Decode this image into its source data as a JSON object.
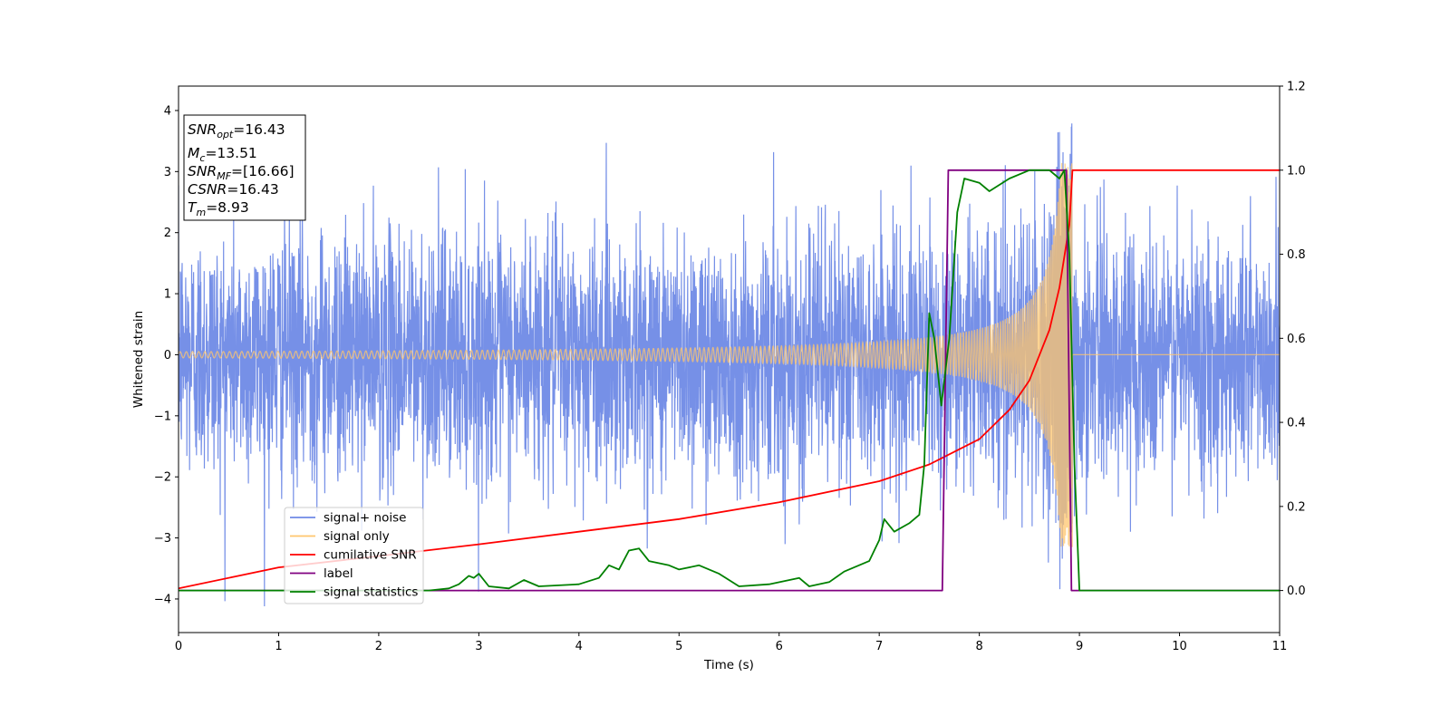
{
  "chart_data": {
    "type": "line",
    "xlabel": "Time (s)",
    "ylabel": "Whitened strain",
    "xlim": [
      0,
      11
    ],
    "ylim_left": [
      -4.55,
      4.4
    ],
    "ylim_right": [
      -0.1,
      1.2
    ],
    "x_ticks": [
      0,
      1,
      2,
      3,
      4,
      5,
      6,
      7,
      8,
      9,
      10,
      11
    ],
    "y_ticks_left": [
      -4,
      -3,
      -2,
      -1,
      0,
      1,
      2,
      3,
      4
    ],
    "y_ticks_right": [
      "0.0",
      "0.2",
      "0.4",
      "0.6",
      "0.8",
      "1.0",
      "1.2"
    ],
    "info_box": {
      "snr_opt": {
        "sym": "SNR",
        "sub": "opt",
        "value": "=16.43"
      },
      "mc": {
        "sym": "M",
        "sub": "c",
        "value": "=13.51"
      },
      "snr_mf": {
        "sym": "SNR",
        "sub": "MF",
        "value": "=[16.66]"
      },
      "csnr": {
        "sym": "CSNR",
        "value": "=16.43"
      },
      "tm": {
        "sym": "T",
        "sub": "m",
        "value": "=8.93"
      }
    },
    "legend": {
      "placement": "lower-left",
      "entries": [
        {
          "label": "signal+ noise",
          "color": "#6f8ae6"
        },
        {
          "label": "signal only",
          "color": "#ffc66e"
        },
        {
          "label": "cumilative SNR",
          "color": "#ff0000"
        },
        {
          "label": "label",
          "color": "#800080"
        },
        {
          "label": "signal statistics",
          "color": "#008000"
        }
      ]
    },
    "series": [
      {
        "name": "signal+ noise",
        "axis": "left",
        "color": "#6f8ae6",
        "noise_sigma": 1.0,
        "x_range": [
          0,
          11
        ]
      },
      {
        "name": "signal only",
        "axis": "left",
        "color": "#ffc66e",
        "merger_time": 8.93,
        "peak_amplitude": 3.15,
        "start_amplitude": 0.05
      },
      {
        "name": "cumilative SNR",
        "axis": "right",
        "color": "#ff0000",
        "points": [
          [
            0,
            0.005
          ],
          [
            1,
            0.055
          ],
          [
            2,
            0.082
          ],
          [
            3,
            0.11
          ],
          [
            4,
            0.14
          ],
          [
            5,
            0.17
          ],
          [
            6,
            0.21
          ],
          [
            7,
            0.26
          ],
          [
            7.5,
            0.3
          ],
          [
            8,
            0.36
          ],
          [
            8.3,
            0.43
          ],
          [
            8.5,
            0.5
          ],
          [
            8.7,
            0.62
          ],
          [
            8.8,
            0.72
          ],
          [
            8.9,
            0.87
          ],
          [
            8.93,
            1.0
          ],
          [
            11,
            1.0
          ]
        ]
      },
      {
        "name": "label",
        "axis": "right",
        "color": "#800080",
        "points": [
          [
            0,
            0.0
          ],
          [
            7.63,
            0.0
          ],
          [
            7.69,
            1.0
          ],
          [
            8.87,
            1.0
          ],
          [
            8.92,
            0.0
          ],
          [
            11,
            0.0
          ]
        ]
      },
      {
        "name": "signal statistics",
        "axis": "right",
        "color": "#008000",
        "points": [
          [
            0,
            0.0
          ],
          [
            1,
            0.0
          ],
          [
            2,
            0.0
          ],
          [
            2.5,
            0.0
          ],
          [
            2.7,
            0.005
          ],
          [
            2.8,
            0.015
          ],
          [
            2.9,
            0.035
          ],
          [
            2.95,
            0.03
          ],
          [
            3.0,
            0.04
          ],
          [
            3.1,
            0.01
          ],
          [
            3.3,
            0.005
          ],
          [
            3.45,
            0.025
          ],
          [
            3.6,
            0.01
          ],
          [
            4.0,
            0.015
          ],
          [
            4.2,
            0.03
          ],
          [
            4.3,
            0.06
          ],
          [
            4.4,
            0.05
          ],
          [
            4.5,
            0.095
          ],
          [
            4.6,
            0.1
          ],
          [
            4.7,
            0.07
          ],
          [
            4.9,
            0.06
          ],
          [
            5.0,
            0.05
          ],
          [
            5.2,
            0.06
          ],
          [
            5.4,
            0.04
          ],
          [
            5.6,
            0.01
          ],
          [
            5.9,
            0.015
          ],
          [
            6.2,
            0.03
          ],
          [
            6.3,
            0.01
          ],
          [
            6.5,
            0.02
          ],
          [
            6.65,
            0.045
          ],
          [
            6.9,
            0.07
          ],
          [
            7.0,
            0.12
          ],
          [
            7.05,
            0.17
          ],
          [
            7.15,
            0.14
          ],
          [
            7.3,
            0.16
          ],
          [
            7.4,
            0.18
          ],
          [
            7.45,
            0.3
          ],
          [
            7.5,
            0.66
          ],
          [
            7.55,
            0.6
          ],
          [
            7.62,
            0.44
          ],
          [
            7.7,
            0.6
          ],
          [
            7.78,
            0.9
          ],
          [
            7.85,
            0.98
          ],
          [
            8.0,
            0.97
          ],
          [
            8.1,
            0.95
          ],
          [
            8.3,
            0.98
          ],
          [
            8.5,
            1.0
          ],
          [
            8.7,
            1.0
          ],
          [
            8.8,
            0.98
          ],
          [
            8.85,
            1.0
          ],
          [
            8.9,
            0.8
          ],
          [
            8.95,
            0.3
          ],
          [
            9.0,
            0.0
          ],
          [
            11,
            0.0
          ]
        ]
      }
    ]
  }
}
